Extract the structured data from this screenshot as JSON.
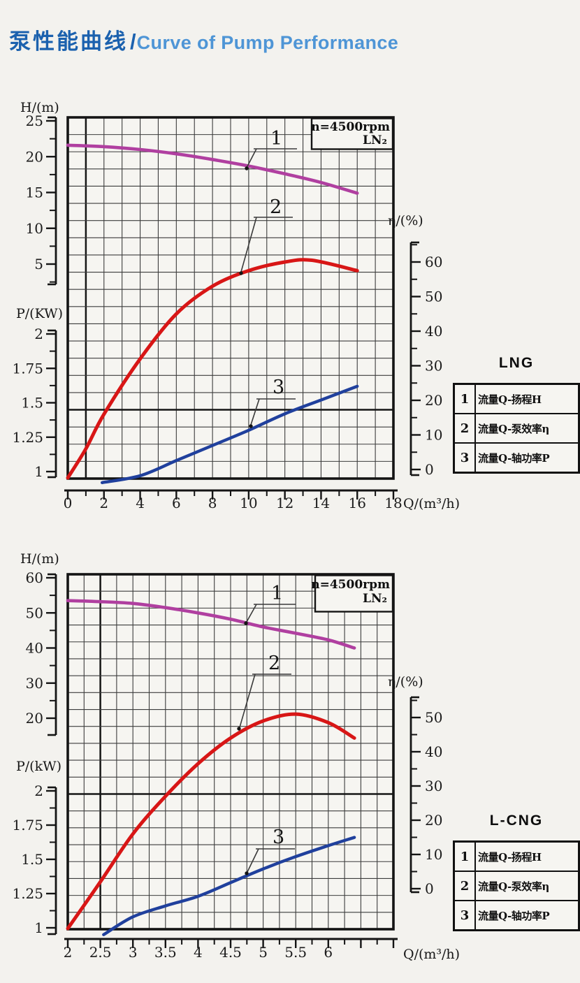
{
  "page": {
    "title_zh": "泵性能曲线",
    "title_sep": "/",
    "title_en": "Curve of Pump Performance"
  },
  "colors": {
    "title_zh": "#1b61ae",
    "title_en": "#4e95d6",
    "curve_h": "#b03fa0",
    "curve_eta": "#d81616",
    "curve_p": "#20409d",
    "axis_ink": "#141414"
  },
  "charts": [
    {
      "name": "LNG",
      "annotation": {
        "speed": "n=4500rpm",
        "medium": "LN₂"
      },
      "h_axis": {
        "label": "H/(m)",
        "ticks": [
          "25",
          "20",
          "15",
          "10",
          "5"
        ]
      },
      "p_axis": {
        "label": "P/(KW)",
        "ticks": [
          "2",
          "1.75",
          "1.5",
          "1.25",
          "1"
        ]
      },
      "eta_axis": {
        "label": "η/(%)",
        "ticks": [
          "60",
          "50",
          "40",
          "30",
          "20",
          "10",
          "0"
        ]
      },
      "x_axis": {
        "label": "Q/(m³/h)",
        "ticks": [
          "0",
          "2",
          "4",
          "6",
          "8",
          "10",
          "12",
          "14",
          "16",
          "18"
        ]
      },
      "curve_labels": [
        "1",
        "2",
        "3"
      ],
      "legend": {
        "title": "LNG",
        "rows": [
          [
            "1",
            "流量Q-扬程H"
          ],
          [
            "2",
            "流量Q-泵效率η"
          ],
          [
            "3",
            "流量Q-轴功率P"
          ]
        ]
      }
    },
    {
      "name": "L-CNG",
      "annotation": {
        "speed": "n=4500rpm",
        "medium": "LN₂"
      },
      "h_axis": {
        "label": "H/(m)",
        "ticks": [
          "60",
          "50",
          "40",
          "30",
          "20"
        ]
      },
      "p_axis": {
        "label": "P/(kW)",
        "ticks": [
          "2",
          "1.75",
          "1.5",
          "1.25",
          "1"
        ]
      },
      "eta_axis": {
        "label": "η/(%)",
        "ticks": [
          "50",
          "40",
          "30",
          "20",
          "10",
          "0"
        ]
      },
      "x_axis": {
        "label": "Q/(m³/h)",
        "ticks": [
          "2",
          "2.5",
          "3",
          "3.5",
          "4",
          "4.5",
          "5",
          "5.5",
          "6"
        ]
      },
      "curve_labels": [
        "1",
        "2",
        "3"
      ],
      "legend": {
        "title": "L-CNG",
        "rows": [
          [
            "1",
            "流量Q-扬程H"
          ],
          [
            "2",
            "流量Q-泵效率η"
          ],
          [
            "3",
            "流量Q-轴功率P"
          ]
        ]
      }
    }
  ],
  "chart_data": [
    {
      "type": "line",
      "title": "LNG pump performance, n=4500rpm, medium LN₂",
      "xlabel": "Q/(m³/h)",
      "x_range": [
        0,
        18
      ],
      "grid": true,
      "axes": {
        "H": {
          "label": "H/(m)",
          "range": [
            5,
            25
          ]
        },
        "P": {
          "label": "P/(KW)",
          "range": [
            1,
            2
          ]
        },
        "eta": {
          "label": "η/(%)",
          "range": [
            0,
            60
          ]
        }
      },
      "series": [
        {
          "name": "流量Q-扬程H",
          "axis": "H",
          "color_key": "curve_h",
          "points": [
            [
              0,
              21.6
            ],
            [
              2,
              21.4
            ],
            [
              4,
              21.0
            ],
            [
              6,
              20.4
            ],
            [
              8,
              19.6
            ],
            [
              10,
              18.7
            ],
            [
              12,
              17.6
            ],
            [
              14,
              16.4
            ],
            [
              16,
              14.9
            ]
          ]
        },
        {
          "name": "流量Q-泵效率η",
          "axis": "eta",
          "color_key": "curve_eta",
          "from_corner": true,
          "points": [
            [
              0,
              0
            ],
            [
              1,
              6
            ],
            [
              2,
              16
            ],
            [
              4,
              32
            ],
            [
              6,
              45
            ],
            [
              8,
              53
            ],
            [
              10,
              57.5
            ],
            [
              12,
              60
            ],
            [
              13.5,
              60.5
            ],
            [
              16,
              57.5
            ]
          ]
        },
        {
          "name": "流量Q-轴功率P",
          "axis": "P",
          "color_key": "curve_p",
          "points": [
            [
              1.9,
              0.92
            ],
            [
              4,
              0.97
            ],
            [
              6,
              1.08
            ],
            [
              8,
              1.19
            ],
            [
              10,
              1.3
            ],
            [
              12,
              1.42
            ],
            [
              14,
              1.52
            ],
            [
              16,
              1.62
            ]
          ]
        }
      ]
    },
    {
      "type": "line",
      "title": "L-CNG pump performance, n=4500rpm, medium LN₂",
      "xlabel": "Q/(m³/h)",
      "x_range": [
        2,
        7
      ],
      "grid": true,
      "axes": {
        "H": {
          "label": "H/(m)",
          "range": [
            20,
            60
          ]
        },
        "P": {
          "label": "P/(kW)",
          "range": [
            1,
            2
          ]
        },
        "eta": {
          "label": "η/(%)",
          "range": [
            0,
            50
          ]
        }
      },
      "series": [
        {
          "name": "流量Q-扬程H",
          "axis": "H",
          "color_key": "curve_h",
          "points": [
            [
              2,
              53.5
            ],
            [
              2.5,
              53.2
            ],
            [
              3,
              52.7
            ],
            [
              3.5,
              51.5
            ],
            [
              4,
              50.0
            ],
            [
              4.5,
              48.2
            ],
            [
              5,
              46.0
            ],
            [
              5.5,
              44.2
            ],
            [
              6,
              42.3
            ],
            [
              6.4,
              40.0
            ]
          ]
        },
        {
          "name": "流量Q-泵效率η",
          "axis": "eta",
          "color_key": "curve_eta",
          "from_corner": true,
          "points": [
            [
              2,
              0
            ],
            [
              2.5,
              2
            ],
            [
              3,
              16
            ],
            [
              3.5,
              27
            ],
            [
              4,
              36.5
            ],
            [
              4.5,
              44
            ],
            [
              5,
              49
            ],
            [
              5.5,
              51
            ],
            [
              6,
              48.5
            ],
            [
              6.4,
              44
            ]
          ]
        },
        {
          "name": "流量Q-轴功率P",
          "axis": "P",
          "color_key": "curve_p",
          "points": [
            [
              2.55,
              0.95
            ],
            [
              3,
              1.08
            ],
            [
              3.5,
              1.16
            ],
            [
              4,
              1.23
            ],
            [
              4.5,
              1.33
            ],
            [
              5,
              1.43
            ],
            [
              5.5,
              1.52
            ],
            [
              6,
              1.6
            ],
            [
              6.4,
              1.66
            ]
          ]
        }
      ]
    }
  ]
}
